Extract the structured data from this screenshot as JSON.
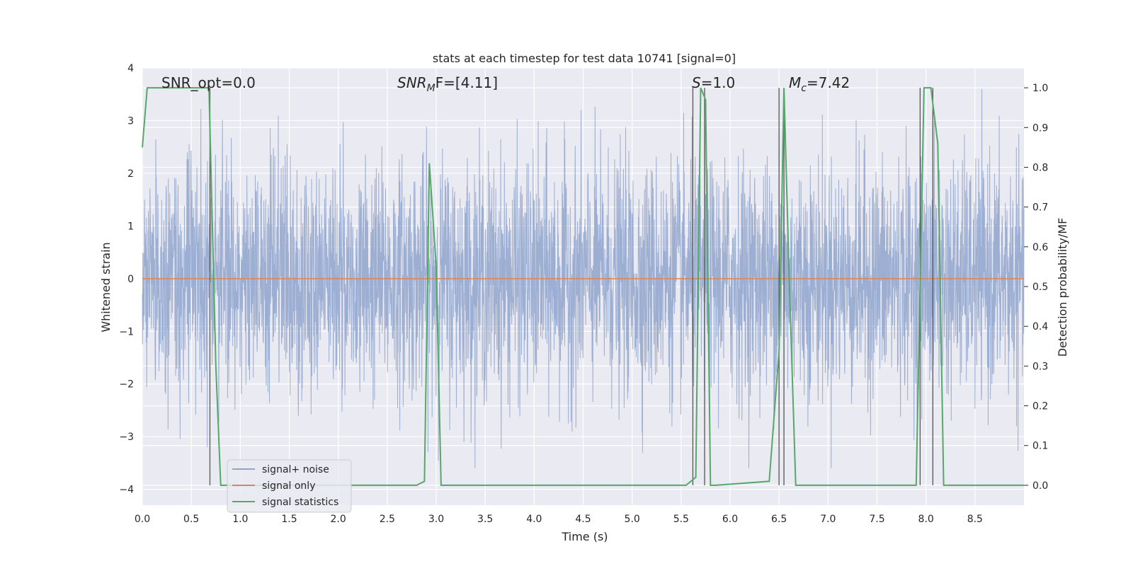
{
  "chart_data": {
    "type": "line",
    "title": "stats at each timestep for test data 10741 [signal=0]",
    "xlabel": "Time (s)",
    "ylabel": "Whitened strain",
    "y2label": "Detection probability/MF",
    "xlim": [
      0.0,
      9.0
    ],
    "ylim": [
      -4.3,
      4.0
    ],
    "y2lim": [
      -0.05,
      1.05
    ],
    "x_ticks": [
      "0.0",
      "0.5",
      "1.0",
      "1.5",
      "2.0",
      "2.5",
      "3.0",
      "3.5",
      "4.0",
      "4.5",
      "5.0",
      "5.5",
      "6.0",
      "6.5",
      "7.0",
      "7.5",
      "8.0",
      "8.5"
    ],
    "y_ticks": [
      "−4",
      "−3",
      "−2",
      "−1",
      "0",
      "1",
      "2",
      "3",
      "4"
    ],
    "y2_ticks": [
      "0.0",
      "0.1",
      "0.2",
      "0.3",
      "0.4",
      "0.5",
      "0.6",
      "0.7",
      "0.8",
      "0.9",
      "1.0"
    ],
    "annotations": {
      "snr_opt": "SNR_opt=0.0",
      "snr_mf_base": "SNR",
      "snr_mf_sub": "M",
      "snr_mf_rest": "F=[4.11]",
      "s_base": "S",
      "s_rest": "=1.0",
      "mc_base": "M",
      "mc_sub": "c",
      "mc_rest": "=7.42"
    },
    "legend": {
      "placement": "lower-left",
      "entries": [
        "signal+ noise",
        "signal only",
        "signal statistics"
      ]
    },
    "colors": {
      "noise": "#8ea3cc",
      "signal_only": "#dd8452",
      "statistics": "#55a868",
      "vlines": "#555555",
      "background": "#eaeaf2",
      "grid": "#ffffff"
    },
    "series": [
      {
        "name": "signal+ noise",
        "description_values": "dense whitened strain noise, roughly within ±2 with spikes to about ±3.6",
        "y_range": [
          -3.6,
          3.6
        ]
      },
      {
        "name": "signal only",
        "values_constant": 0.0
      },
      {
        "name": "signal statistics",
        "axis": "right",
        "x": [
          0.0,
          0.05,
          0.1,
          0.5,
          0.68,
          0.75,
          0.8,
          0.85,
          2.8,
          2.88,
          2.93,
          3.0,
          3.05,
          3.1,
          5.55,
          5.65,
          5.7,
          5.75,
          5.8,
          5.85,
          6.4,
          6.5,
          6.55,
          6.6,
          6.67,
          6.7,
          7.9,
          7.98,
          8.0,
          8.05,
          8.12,
          8.18,
          8.2,
          8.5,
          9.0
        ],
        "values": [
          0.85,
          1.0,
          1.0,
          1.0,
          1.0,
          0.3,
          0.0,
          0.0,
          0.0,
          0.01,
          0.81,
          0.55,
          0.0,
          0.0,
          0.0,
          0.02,
          1.0,
          0.97,
          0.0,
          0.0,
          0.01,
          0.34,
          1.0,
          0.55,
          0.0,
          0.0,
          0.0,
          1.0,
          1.0,
          1.0,
          0.86,
          0.0,
          0.0,
          0.0,
          0.0
        ]
      }
    ],
    "vertical_lines_x": [
      0.69,
      5.62,
      5.74,
      6.5,
      6.55,
      7.94,
      8.07
    ]
  }
}
